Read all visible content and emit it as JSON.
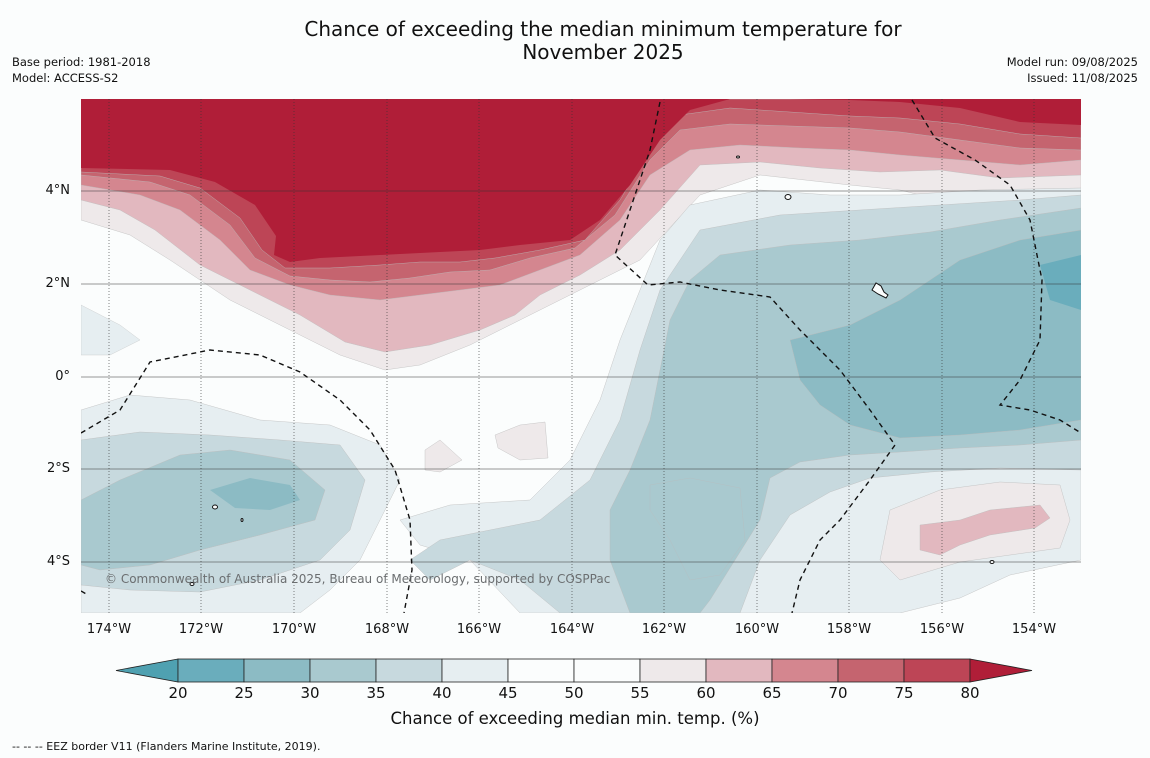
{
  "title_line1": "Chance of exceeding the median minimum temperature for",
  "title_line2": "November 2025",
  "left_meta": {
    "base_period": "Base period: 1981-2018",
    "model": "Model: ACCESS-S2"
  },
  "right_meta": {
    "model_run": "Model run: 09/08/2025",
    "issued": "Issued: 11/08/2025"
  },
  "lat_labels": [
    "4°N",
    "2°N",
    "0°",
    "2°S",
    "4°S"
  ],
  "lon_labels": [
    "174°W",
    "172°W",
    "170°W",
    "168°W",
    "166°W",
    "164°W",
    "162°W",
    "160°W",
    "158°W",
    "156°W",
    "154°W"
  ],
  "copyright": "© Commonwealth of Australia 2025, Bureau of Meteorology, supported by COSPPac",
  "colorbar": {
    "ticks": [
      "20",
      "25",
      "30",
      "35",
      "40",
      "45",
      "50",
      "55",
      "60",
      "65",
      "70",
      "75",
      "80"
    ],
    "label": "Chance of exceeding median min. temp. (%)",
    "colors": [
      "#4fa1b1",
      "#6aadbc",
      "#8cbbc4",
      "#a9c9cf",
      "#c7d9de",
      "#e6eef1",
      "#fbfdfd",
      "#fbfdfd",
      "#eee9ea",
      "#e2b8bf",
      "#d4868f",
      "#c5646f",
      "#bd4556",
      "#b01e38"
    ]
  },
  "footer": "--  --  -- EEZ border V11 (Flanders Marine Institute, 2019)."
}
